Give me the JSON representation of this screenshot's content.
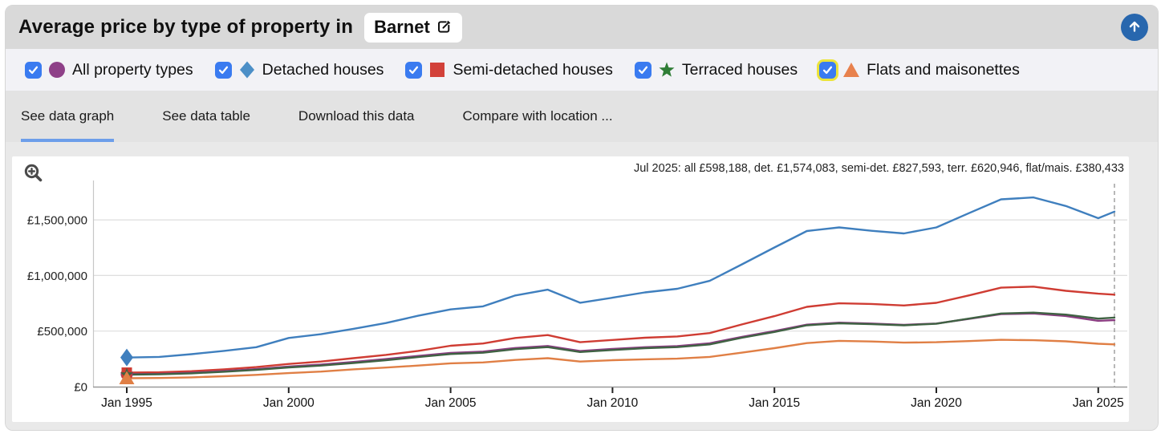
{
  "header": {
    "title": "Average price by type of property in",
    "location_button": {
      "label": "Barnet"
    }
  },
  "colors": {
    "accent_blue": "#3a7bf0",
    "focus_yellow": "#ece43a",
    "tab_underline_blue": "#6d9eea",
    "up_button_blue": "#2867ae"
  },
  "legend": {
    "items": [
      {
        "label": "All property types",
        "checked": true,
        "marker": "circle",
        "color": "#8e4088"
      },
      {
        "label": "Detached houses",
        "checked": true,
        "marker": "diamond",
        "color": "#4c8fc7"
      },
      {
        "label": "Semi-detached houses",
        "checked": true,
        "marker": "square",
        "color": "#d2413a"
      },
      {
        "label": "Terraced houses",
        "checked": true,
        "marker": "star",
        "color": "#2f7d36"
      },
      {
        "label": "Flats and maisonettes",
        "checked": true,
        "marker": "triangle",
        "color": "#e8814d",
        "focused": true
      }
    ]
  },
  "tabs": {
    "items": [
      {
        "label": "See data graph",
        "active": true
      },
      {
        "label": "See data table",
        "active": false
      },
      {
        "label": "Download this data",
        "active": false
      },
      {
        "label": "Compare with location ...",
        "active": false
      }
    ]
  },
  "chart_data": {
    "type": "line",
    "annotation": "Jul 2025: all £598,188, det. £1,574,083, semi-det. £827,593, terr. £620,946, flat/mais. £380,433",
    "x_range": [
      1994.6,
      2025.9
    ],
    "y_range": [
      0,
      1830000
    ],
    "grid": true,
    "dashed_line_year": 2025.5,
    "x_ticks": [
      {
        "year": 1995,
        "label": "Jan 1995"
      },
      {
        "year": 2000,
        "label": "Jan 2000"
      },
      {
        "year": 2005,
        "label": "Jan 2005"
      },
      {
        "year": 2010,
        "label": "Jan 2010"
      },
      {
        "year": 2015,
        "label": "Jan 2015"
      },
      {
        "year": 2020,
        "label": "Jan 2020"
      },
      {
        "year": 2025,
        "label": "Jan 2025"
      }
    ],
    "y_ticks": [
      {
        "value": 0,
        "label": "£0"
      },
      {
        "value": 500000,
        "label": "£500,000"
      },
      {
        "value": 1000000,
        "label": "£1,000,000"
      },
      {
        "value": 1500000,
        "label": "£1,500,000"
      }
    ],
    "latest": {
      "date": "Jul 2025",
      "all": 598188,
      "detached": 1574083,
      "semi_detached": 827593,
      "terraced": 620946,
      "flats": 380433
    },
    "series": [
      {
        "name": "Detached houses",
        "color": "#3f7fbe",
        "marker": "diamond",
        "points": [
          [
            1995,
            262000
          ],
          [
            1996,
            268000
          ],
          [
            1997,
            292000
          ],
          [
            1998,
            322000
          ],
          [
            1999,
            355000
          ],
          [
            2000,
            438000
          ],
          [
            2001,
            472000
          ],
          [
            2002,
            520000
          ],
          [
            2003,
            572000
          ],
          [
            2004,
            638000
          ],
          [
            2005,
            695000
          ],
          [
            2006,
            722000
          ],
          [
            2007,
            820000
          ],
          [
            2008,
            872000
          ],
          [
            2009,
            755000
          ],
          [
            2010,
            800000
          ],
          [
            2011,
            848000
          ],
          [
            2012,
            880000
          ],
          [
            2013,
            952000
          ],
          [
            2014,
            1100000
          ],
          [
            2015,
            1252000
          ],
          [
            2016,
            1400000
          ],
          [
            2017,
            1432000
          ],
          [
            2018,
            1402000
          ],
          [
            2019,
            1378000
          ],
          [
            2020,
            1432000
          ],
          [
            2021,
            1560000
          ],
          [
            2022,
            1685000
          ],
          [
            2023,
            1702000
          ],
          [
            2024,
            1625000
          ],
          [
            2025,
            1515000
          ],
          [
            2025.5,
            1574083
          ]
        ]
      },
      {
        "name": "Semi-detached houses",
        "color": "#cf3c33",
        "marker": "square",
        "points": [
          [
            1995,
            126000
          ],
          [
            1996,
            129000
          ],
          [
            1997,
            139000
          ],
          [
            1998,
            156000
          ],
          [
            1999,
            176000
          ],
          [
            2000,
            204000
          ],
          [
            2001,
            226000
          ],
          [
            2002,
            256000
          ],
          [
            2003,
            286000
          ],
          [
            2004,
            322000
          ],
          [
            2005,
            368000
          ],
          [
            2006,
            388000
          ],
          [
            2007,
            438000
          ],
          [
            2008,
            464000
          ],
          [
            2009,
            400000
          ],
          [
            2010,
            420000
          ],
          [
            2011,
            440000
          ],
          [
            2012,
            452000
          ],
          [
            2013,
            482000
          ],
          [
            2014,
            560000
          ],
          [
            2015,
            634000
          ],
          [
            2016,
            718000
          ],
          [
            2017,
            750000
          ],
          [
            2018,
            744000
          ],
          [
            2019,
            730000
          ],
          [
            2020,
            754000
          ],
          [
            2021,
            820000
          ],
          [
            2022,
            890000
          ],
          [
            2023,
            900000
          ],
          [
            2024,
            862000
          ],
          [
            2025,
            836000
          ],
          [
            2025.5,
            827593
          ]
        ]
      },
      {
        "name": "All property types",
        "color": "#8b3d82",
        "marker": "circle",
        "points": [
          [
            1995,
            112000
          ],
          [
            1996,
            115000
          ],
          [
            1997,
            125000
          ],
          [
            1998,
            140000
          ],
          [
            1999,
            158000
          ],
          [
            2000,
            181000
          ],
          [
            2001,
            199000
          ],
          [
            2002,
            222000
          ],
          [
            2003,
            248000
          ],
          [
            2004,
            276000
          ],
          [
            2005,
            304000
          ],
          [
            2006,
            315000
          ],
          [
            2007,
            348000
          ],
          [
            2008,
            366000
          ],
          [
            2009,
            320000
          ],
          [
            2010,
            340000
          ],
          [
            2011,
            355000
          ],
          [
            2012,
            365000
          ],
          [
            2013,
            390000
          ],
          [
            2014,
            448000
          ],
          [
            2015,
            500000
          ],
          [
            2016,
            558000
          ],
          [
            2017,
            576000
          ],
          [
            2018,
            568000
          ],
          [
            2019,
            556000
          ],
          [
            2020,
            568000
          ],
          [
            2021,
            610000
          ],
          [
            2022,
            652000
          ],
          [
            2023,
            658000
          ],
          [
            2024,
            636000
          ],
          [
            2025,
            592000
          ],
          [
            2025.5,
            598188
          ]
        ]
      },
      {
        "name": "Terraced houses",
        "color": "#3f6243",
        "marker": "star",
        "points": [
          [
            1995,
            108000
          ],
          [
            1996,
            111000
          ],
          [
            1997,
            120000
          ],
          [
            1998,
            134000
          ],
          [
            1999,
            151000
          ],
          [
            2000,
            173000
          ],
          [
            2001,
            190000
          ],
          [
            2002,
            213000
          ],
          [
            2003,
            238000
          ],
          [
            2004,
            266000
          ],
          [
            2005,
            294000
          ],
          [
            2006,
            305000
          ],
          [
            2007,
            338000
          ],
          [
            2008,
            356000
          ],
          [
            2009,
            312000
          ],
          [
            2010,
            330000
          ],
          [
            2011,
            346000
          ],
          [
            2012,
            356000
          ],
          [
            2013,
            380000
          ],
          [
            2014,
            440000
          ],
          [
            2015,
            492000
          ],
          [
            2016,
            552000
          ],
          [
            2017,
            570000
          ],
          [
            2018,
            562000
          ],
          [
            2019,
            552000
          ],
          [
            2020,
            566000
          ],
          [
            2021,
            612000
          ],
          [
            2022,
            658000
          ],
          [
            2023,
            666000
          ],
          [
            2024,
            648000
          ],
          [
            2025,
            612000
          ],
          [
            2025.5,
            620946
          ]
        ]
      },
      {
        "name": "Flats and maisonettes",
        "color": "#e07f45",
        "marker": "triangle",
        "points": [
          [
            1995,
            76000
          ],
          [
            1996,
            78000
          ],
          [
            1997,
            84000
          ],
          [
            1998,
            94000
          ],
          [
            1999,
            106000
          ],
          [
            2000,
            122000
          ],
          [
            2001,
            136000
          ],
          [
            2002,
            156000
          ],
          [
            2003,
            172000
          ],
          [
            2004,
            190000
          ],
          [
            2005,
            210000
          ],
          [
            2006,
            218000
          ],
          [
            2007,
            240000
          ],
          [
            2008,
            256000
          ],
          [
            2009,
            226000
          ],
          [
            2010,
            238000
          ],
          [
            2011,
            246000
          ],
          [
            2012,
            252000
          ],
          [
            2013,
            268000
          ],
          [
            2014,
            306000
          ],
          [
            2015,
            346000
          ],
          [
            2016,
            392000
          ],
          [
            2017,
            412000
          ],
          [
            2018,
            406000
          ],
          [
            2019,
            396000
          ],
          [
            2020,
            400000
          ],
          [
            2021,
            410000
          ],
          [
            2022,
            421000
          ],
          [
            2023,
            418000
          ],
          [
            2024,
            408000
          ],
          [
            2025,
            386000
          ],
          [
            2025.5,
            380433
          ]
        ]
      }
    ]
  }
}
